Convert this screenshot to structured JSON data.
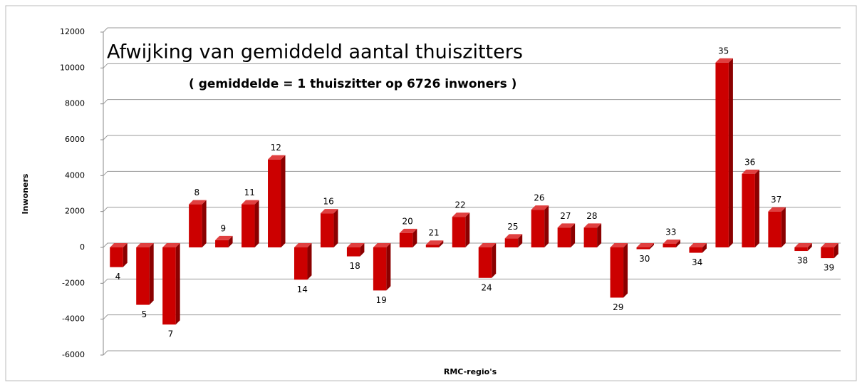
{
  "chart_data": {
    "type": "bar",
    "title": "Afwijking van gemiddeld aantal thuiszitters",
    "subtitle": "( gemiddelde = 1 thuiszitter op 6726 inwoners )",
    "x_label": "RMC-regio's",
    "y_label": "Inwoners",
    "categories": [
      "4",
      "5",
      "7",
      "8",
      "9",
      "11",
      "12",
      "14",
      "16",
      "18",
      "19",
      "20",
      "21",
      "22",
      "24",
      "25",
      "26",
      "27",
      "28",
      "29",
      "30",
      "33",
      "34",
      "35",
      "36",
      "37",
      "38",
      "39"
    ],
    "values": [
      -1100,
      -3200,
      -4300,
      2400,
      400,
      2400,
      4900,
      -1800,
      1900,
      -500,
      -2400,
      800,
      150,
      1700,
      -1700,
      500,
      2100,
      1100,
      1100,
      -2800,
      -100,
      200,
      -300,
      10300,
      4100,
      2000,
      -200,
      -600
    ],
    "color": "#cc0000",
    "ylim": [
      -6000,
      12000
    ],
    "yticks": [
      -6000,
      -4000,
      -2000,
      0,
      2000,
      4000,
      6000,
      8000,
      10000,
      12000
    ],
    "grid": true
  }
}
